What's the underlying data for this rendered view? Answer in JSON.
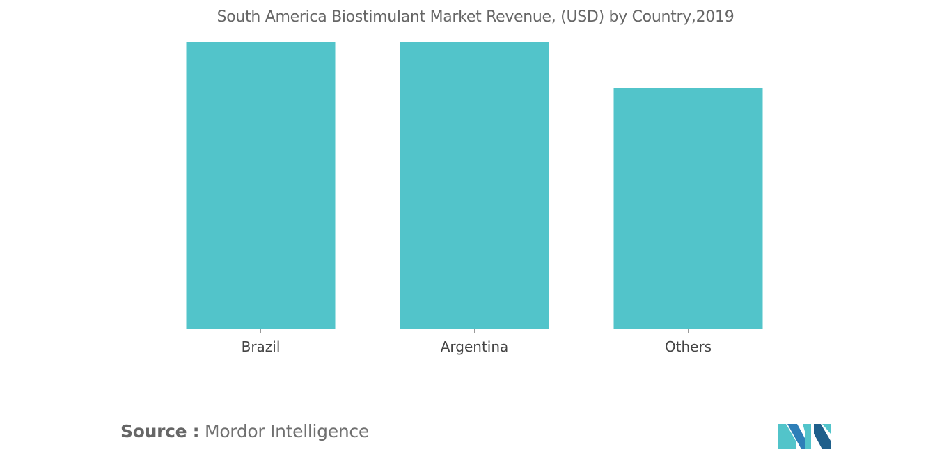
{
  "chart_data": {
    "type": "bar",
    "title": "South America Biostimulant Market Revenue, (USD) by Country,2019",
    "categories": [
      "Brazil",
      "Argentina",
      "Others"
    ],
    "values": [
      100,
      100,
      84
    ],
    "ylim": [
      0,
      100
    ],
    "grid": false,
    "legend": "none",
    "bar_color": "#52C4CA"
  },
  "source": {
    "label": "Source :",
    "name": "Mordor Intelligence"
  },
  "logo": {
    "name": "mordor-intelligence-logo",
    "colors": [
      "#52C4CA",
      "#2E7FB8",
      "#1F5F8B"
    ]
  }
}
